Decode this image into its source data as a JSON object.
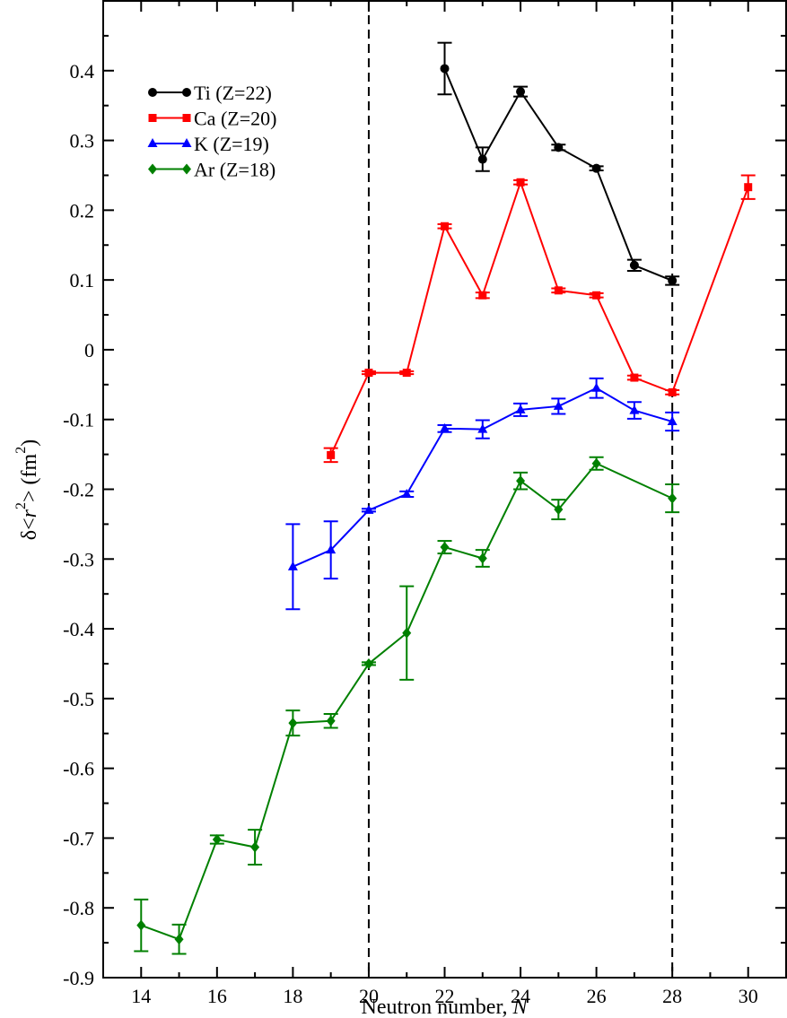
{
  "chart_data": {
    "type": "line",
    "xlabel": "Neutron number, ",
    "xlabel_var": "N",
    "ylabel": {
      "delta": "δ",
      "lt": "<",
      "r": "r",
      "sup1": "2",
      "gt": ">",
      "unit_open": " (fm",
      "sup2": "2",
      "unit_close": ")"
    },
    "xlim": [
      13,
      31
    ],
    "ylim": [
      -0.9,
      0.5
    ],
    "x_ticks": [
      14,
      16,
      18,
      20,
      22,
      24,
      26,
      28,
      30
    ],
    "x_tick_labels": [
      "14",
      "16",
      "18",
      "20",
      "22",
      "24",
      "26",
      "28",
      "30"
    ],
    "y_ticks": [
      -0.9,
      -0.8,
      -0.7,
      -0.6,
      -0.5,
      -0.4,
      -0.3,
      -0.2,
      -0.1,
      0,
      0.1,
      0.2,
      0.3,
      0.4
    ],
    "y_tick_labels": [
      "-0.9",
      "-0.8",
      "-0.7",
      "-0.6",
      "-0.5",
      "-0.4",
      "-0.3",
      "-0.2",
      "-0.1",
      "0",
      "0.1",
      "0.2",
      "0.3",
      "0.4"
    ],
    "vlines": [
      20,
      28
    ],
    "grid": false,
    "legend_position": "top-left",
    "series": [
      {
        "name": "Ti (Z=22)",
        "color": "#000000",
        "marker": "circle",
        "points": [
          {
            "x": 22,
            "y": 0.403,
            "err": 0.037
          },
          {
            "x": 23,
            "y": 0.273,
            "err": 0.017
          },
          {
            "x": 24,
            "y": 0.37,
            "err": 0.007
          },
          {
            "x": 25,
            "y": 0.29,
            "err": 0.004
          },
          {
            "x": 26,
            "y": 0.26,
            "err": 0.003
          },
          {
            "x": 27,
            "y": 0.121,
            "err": 0.008
          },
          {
            "x": 28,
            "y": 0.099,
            "err": 0.006
          }
        ]
      },
      {
        "name": "Ca (Z=20)",
        "color": "#ff0000",
        "marker": "square",
        "points": [
          {
            "x": 19,
            "y": -0.151,
            "err": 0.01
          },
          {
            "x": 20,
            "y": -0.033,
            "err": 0.002
          },
          {
            "x": 21,
            "y": -0.033,
            "err": 0.002
          },
          {
            "x": 22,
            "y": 0.177,
            "err": 0.003
          },
          {
            "x": 23,
            "y": 0.078,
            "err": 0.004
          },
          {
            "x": 24,
            "y": 0.24,
            "err": 0.003
          },
          {
            "x": 25,
            "y": 0.085,
            "err": 0.003
          },
          {
            "x": 26,
            "y": 0.078,
            "err": 0.003
          },
          {
            "x": 27,
            "y": -0.04,
            "err": 0.003
          },
          {
            "x": 28,
            "y": -0.061,
            "err": 0.003
          },
          {
            "x": 30,
            "y": 0.233,
            "err": 0.017
          }
        ]
      },
      {
        "name": "K (Z=19)",
        "color": "#0000ff",
        "marker": "triangle",
        "points": [
          {
            "x": 18,
            "y": -0.311,
            "err": 0.061
          },
          {
            "x": 19,
            "y": -0.287,
            "err": 0.041
          },
          {
            "x": 20,
            "y": -0.23,
            "err": 0.002
          },
          {
            "x": 21,
            "y": -0.207,
            "err": 0.004
          },
          {
            "x": 22,
            "y": -0.113,
            "err": 0.005
          },
          {
            "x": 23,
            "y": -0.114,
            "err": 0.013
          },
          {
            "x": 24,
            "y": -0.086,
            "err": 0.009
          },
          {
            "x": 25,
            "y": -0.081,
            "err": 0.011
          },
          {
            "x": 26,
            "y": -0.055,
            "err": 0.014
          },
          {
            "x": 27,
            "y": -0.087,
            "err": 0.012
          },
          {
            "x": 28,
            "y": -0.103,
            "err": 0.013
          }
        ]
      },
      {
        "name": "Ar (Z=18)",
        "color": "#008000",
        "marker": "diamond",
        "points": [
          {
            "x": 14,
            "y": -0.825,
            "err": 0.037
          },
          {
            "x": 15,
            "y": -0.845,
            "err": 0.021
          },
          {
            "x": 16,
            "y": -0.702,
            "err": 0.006
          },
          {
            "x": 17,
            "y": -0.713,
            "err": 0.025
          },
          {
            "x": 18,
            "y": -0.535,
            "err": 0.018
          },
          {
            "x": 19,
            "y": -0.532,
            "err": 0.01
          },
          {
            "x": 20,
            "y": -0.45,
            "err": 0.002
          },
          {
            "x": 21,
            "y": -0.406,
            "err": 0.067
          },
          {
            "x": 22,
            "y": -0.283,
            "err": 0.009
          },
          {
            "x": 23,
            "y": -0.299,
            "err": 0.012
          },
          {
            "x": 24,
            "y": -0.188,
            "err": 0.012
          },
          {
            "x": 25,
            "y": -0.229,
            "err": 0.014
          },
          {
            "x": 26,
            "y": -0.163,
            "err": 0.009
          },
          {
            "x": 28,
            "y": -0.213,
            "err": 0.02
          }
        ]
      }
    ]
  }
}
